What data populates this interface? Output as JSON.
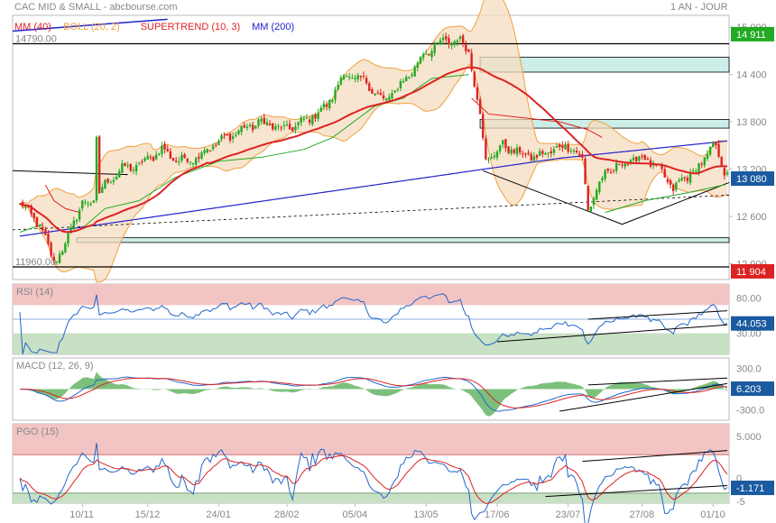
{
  "header": {
    "title": "CAC MID & SMALL - abcbourse.com",
    "timeframe": "1 AN - JOUR"
  },
  "colors": {
    "bull": "#22aa22",
    "bear": "#dd2222",
    "mm40": "#dd2222",
    "boll": "#f0a040",
    "supertrend": "#dd2222",
    "mm200": "#2222cc",
    "badge_up": "#22aa22",
    "badge_down": "#dd2222",
    "badge_neutral": "#1a5aa0"
  },
  "chart_data": {
    "type": "line",
    "x_ticks": [
      "10/11",
      "15/12",
      "24/01",
      "28/02",
      "05/04",
      "13/05",
      "17/06",
      "23/07",
      "27/08",
      "01/10"
    ],
    "main": {
      "legend": [
        {
          "label": "MM (40)",
          "color": "#dd2222"
        },
        {
          "label": "BOLL (20, 2)",
          "color": "#f0a040"
        },
        {
          "label": "SUPERTREND (10, 3)",
          "color": "#dd2222"
        },
        {
          "label": "MM (200)",
          "color": "#2222cc"
        }
      ],
      "y_ticks": [
        "15 000",
        "14 400",
        "13 800",
        "13 200",
        "12 600",
        "12 000"
      ],
      "ylim": [
        11800,
        15150
      ],
      "levels": [
        {
          "label": "14790.00",
          "value": 14790
        },
        {
          "label": "11960.00",
          "value": 11960
        }
      ],
      "last_badge": "13 080",
      "high_badge": "14 911",
      "low_badge": "11 904",
      "price_key": [
        [
          0,
          12750
        ],
        [
          5,
          12600
        ],
        [
          9,
          12300
        ],
        [
          12,
          12050
        ],
        [
          15,
          12150
        ],
        [
          19,
          12550
        ],
        [
          22,
          12750
        ],
        [
          26,
          12800
        ],
        [
          27,
          13600
        ],
        [
          28,
          12900
        ],
        [
          31,
          13050
        ],
        [
          36,
          13200
        ],
        [
          42,
          13250
        ],
        [
          50,
          13450
        ],
        [
          56,
          13300
        ],
        [
          62,
          13350
        ],
        [
          70,
          13550
        ],
        [
          78,
          13700
        ],
        [
          85,
          13800
        ],
        [
          93,
          13700
        ],
        [
          100,
          13800
        ],
        [
          108,
          14000
        ],
        [
          114,
          14400
        ],
        [
          122,
          14300
        ],
        [
          128,
          14050
        ],
        [
          136,
          14350
        ],
        [
          142,
          14650
        ],
        [
          148,
          14800
        ],
        [
          154,
          14850
        ],
        [
          158,
          14700
        ],
        [
          160,
          14300
        ],
        [
          162,
          13900
        ],
        [
          164,
          13300
        ],
        [
          170,
          13500
        ],
        [
          176,
          13400
        ],
        [
          182,
          13350
        ],
        [
          188,
          13450
        ],
        [
          194,
          13500
        ],
        [
          198,
          13300
        ],
        [
          200,
          12700
        ],
        [
          206,
          13150
        ],
        [
          214,
          13300
        ],
        [
          220,
          13350
        ],
        [
          226,
          13150
        ],
        [
          230,
          12950
        ],
        [
          236,
          13150
        ],
        [
          240,
          13250
        ],
        [
          244,
          13550
        ],
        [
          248,
          13150
        ]
      ],
      "supertrend_segments": [
        {
          "dir": "up",
          "points": [
            [
              0,
              12400
            ],
            [
              8,
              12500
            ]
          ]
        },
        {
          "dir": "down",
          "points": [
            [
              9,
              13000
            ],
            [
              12,
              12800
            ],
            [
              16,
              12700
            ],
            [
              21,
              12650
            ]
          ]
        },
        {
          "dir": "up",
          "points": [
            [
              22,
              12450
            ],
            [
              30,
              12700
            ],
            [
              42,
              12800
            ],
            [
              55,
              13100
            ],
            [
              70,
              13300
            ],
            [
              85,
              13350
            ],
            [
              100,
              13450
            ],
            [
              110,
              13600
            ],
            [
              125,
              14000
            ],
            [
              135,
              14100
            ],
            [
              145,
              14350
            ],
            [
              158,
              14400
            ]
          ]
        },
        {
          "dir": "down",
          "points": [
            [
              159,
              14100
            ],
            [
              165,
              13900
            ],
            [
              190,
              13800
            ],
            [
              200,
              13700
            ],
            [
              205,
              13600
            ]
          ]
        },
        {
          "dir": "up",
          "points": [
            [
              206,
              12650
            ],
            [
              220,
              12800
            ],
            [
              235,
              12900
            ],
            [
              248,
              13000
            ]
          ]
        }
      ]
    },
    "rsi": {
      "label": "RSI (14)",
      "ylim": [
        0,
        100
      ],
      "y_ticks": [
        "80.00",
        "30.00"
      ],
      "band_top": 70,
      "band_bottom": 30,
      "last": "44.053"
    },
    "macd": {
      "label": "MACD (12, 26, 9)",
      "ylim": [
        -450,
        450
      ],
      "y_ticks": [
        "300.0",
        "-300.0"
      ],
      "last": "6.203"
    },
    "pgo": {
      "label": "PGO (15)",
      "ylim": [
        -3,
        6.5
      ],
      "y_ticks": [
        "5.000",
        "0",
        "-5"
      ],
      "band_top": 2.8,
      "band_bottom": -1.8,
      "last": "-1.171"
    }
  }
}
